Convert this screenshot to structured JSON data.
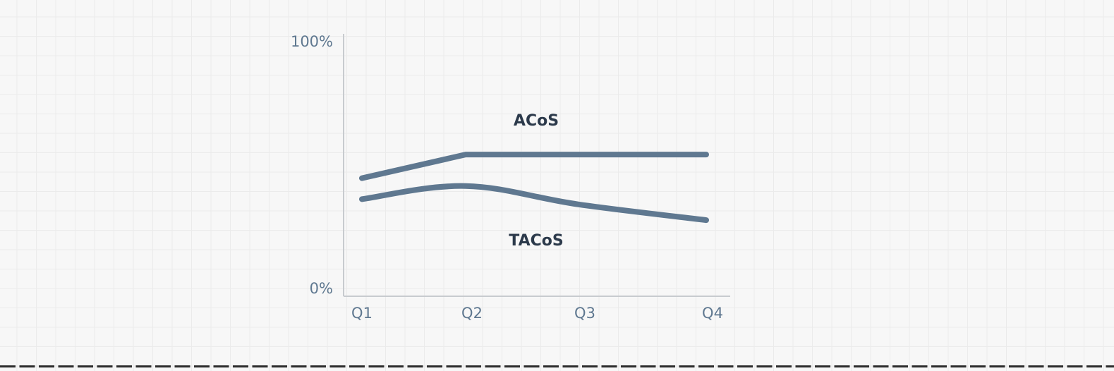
{
  "chart_data": {
    "type": "line",
    "categories": [
      "Q1",
      "Q2",
      "Q3",
      "Q4"
    ],
    "ylim": [
      0,
      100
    ],
    "y_tick_labels": [
      "100%",
      "0%"
    ],
    "grid": false,
    "legend": "inline labels",
    "series": [
      {
        "name": "ACoS",
        "values": [
          45,
          54,
          54,
          54
        ],
        "smooth": false
      },
      {
        "name": "TACoS",
        "values": [
          37,
          42,
          35,
          29
        ],
        "smooth": true
      }
    ],
    "colors": {
      "line": "#5f7890",
      "axis": "#c8cbcf",
      "tick_text": "#5f7890",
      "series_label": "#2c3a4b",
      "background": "#f7f7f7",
      "grid": "#ebebeb"
    }
  }
}
